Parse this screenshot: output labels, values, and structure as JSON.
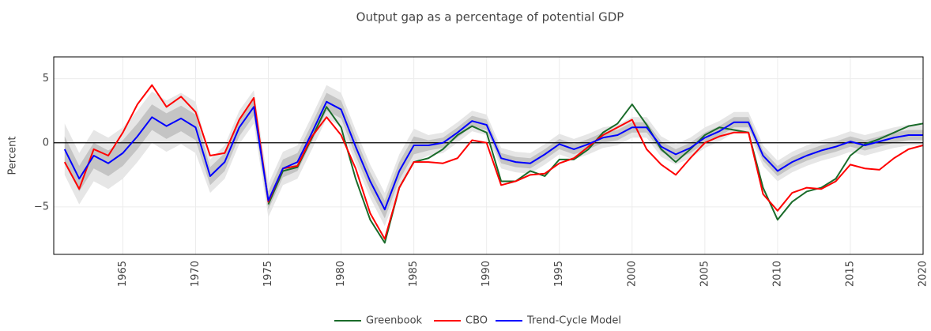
{
  "chart_data": {
    "type": "line",
    "title": "Output gap as a percentage of potential GDP",
    "y_label": "Percent",
    "x": [
      1961,
      1962,
      1963,
      1964,
      1965,
      1966,
      1967,
      1968,
      1969,
      1970,
      1971,
      1972,
      1973,
      1974,
      1975,
      1976,
      1977,
      1978,
      1979,
      1980,
      1981,
      1982,
      1983,
      1984,
      1985,
      1986,
      1987,
      1988,
      1989,
      1990,
      1991,
      1992,
      1993,
      1994,
      1995,
      1996,
      1997,
      1998,
      1999,
      2000,
      2001,
      2002,
      2003,
      2004,
      2005,
      2006,
      2007,
      2008,
      2009,
      2010,
      2011,
      2012,
      2013,
      2014,
      2015,
      2016,
      2017,
      2018,
      2019,
      2020
    ],
    "series": [
      {
        "name": "Greenbook",
        "color": "#1a6b2a",
        "values": [
          null,
          null,
          null,
          null,
          null,
          null,
          null,
          null,
          null,
          null,
          null,
          null,
          null,
          null,
          -4.8,
          -2.2,
          -1.9,
          0.4,
          2.8,
          1.2,
          -2.8,
          -6.0,
          -7.8,
          -3.5,
          -1.5,
          -1.2,
          -0.5,
          0.6,
          1.3,
          0.8,
          -3.0,
          -3.0,
          -2.2,
          -2.6,
          -1.3,
          -1.3,
          -0.5,
          0.8,
          1.5,
          3.0,
          1.4,
          -0.5,
          -1.5,
          -0.5,
          0.6,
          1.2,
          1.0,
          0.8,
          -3.5,
          -6.0,
          -4.6,
          -3.8,
          -3.5,
          -2.8,
          -1.0,
          -0.1,
          0.3,
          0.8,
          1.3,
          1.5
        ]
      },
      {
        "name": "CBO",
        "color": "#ff0000",
        "values": [
          -1.5,
          -3.6,
          -0.5,
          -1.0,
          0.8,
          3.0,
          4.5,
          2.8,
          3.6,
          2.4,
          -1.0,
          -0.8,
          1.8,
          3.5,
          -4.6,
          -2.0,
          -1.8,
          0.5,
          2.0,
          0.6,
          -2.0,
          -5.5,
          -7.5,
          -3.5,
          -1.5,
          -1.5,
          -1.6,
          -1.2,
          0.2,
          0.0,
          -3.3,
          -3.0,
          -2.5,
          -2.4,
          -1.6,
          -1.2,
          -0.3,
          0.6,
          1.2,
          1.8,
          -0.5,
          -1.7,
          -2.5,
          -1.2,
          0.0,
          0.5,
          0.8,
          0.8,
          -4.0,
          -5.3,
          -3.9,
          -3.5,
          -3.6,
          -3.0,
          -1.7,
          -2.0,
          -2.1,
          -1.2,
          -0.5,
          -0.2
        ]
      },
      {
        "name": "Trend-Cycle Model",
        "color": "#0000ff",
        "values": [
          -0.5,
          -2.8,
          -1.0,
          -1.6,
          -0.8,
          0.5,
          2.0,
          1.3,
          1.9,
          1.2,
          -2.6,
          -1.5,
          1.2,
          2.8,
          -4.5,
          -2.0,
          -1.5,
          0.8,
          3.2,
          2.6,
          -0.3,
          -3.0,
          -5.2,
          -2.2,
          -0.2,
          -0.2,
          0.0,
          0.8,
          1.7,
          1.4,
          -1.2,
          -1.5,
          -1.6,
          -0.9,
          -0.1,
          -0.5,
          -0.1,
          0.4,
          0.6,
          1.2,
          1.2,
          -0.3,
          -0.9,
          -0.4,
          0.4,
          0.9,
          1.6,
          1.6,
          -1.0,
          -2.2,
          -1.5,
          -1.0,
          -0.6,
          -0.3,
          0.1,
          -0.2,
          0.1,
          0.4,
          0.6,
          0.6
        ]
      }
    ],
    "bands": [
      {
        "color": "#e6e6e6",
        "upper": [
          1.5,
          -0.8,
          1.0,
          0.4,
          1.2,
          2.5,
          4.0,
          3.3,
          3.9,
          3.2,
          -1.3,
          -0.2,
          2.5,
          4.1,
          -3.2,
          -0.7,
          -0.2,
          2.1,
          4.5,
          3.9,
          1.0,
          -1.7,
          -3.9,
          -0.9,
          1.1,
          0.6,
          0.8,
          1.6,
          2.5,
          2.2,
          -0.4,
          -0.7,
          -0.8,
          -0.1,
          0.7,
          0.3,
          0.7,
          1.2,
          1.4,
          2.0,
          2.0,
          0.5,
          -0.1,
          0.4,
          1.2,
          1.7,
          2.4,
          2.4,
          -0.2,
          -1.4,
          -0.7,
          -0.2,
          0.2,
          0.5,
          0.9,
          0.6,
          0.9,
          1.2,
          1.4,
          1.4
        ],
        "lower": [
          -2.5,
          -4.8,
          -3.0,
          -3.6,
          -2.8,
          -1.5,
          0.0,
          -0.7,
          -0.1,
          -0.8,
          -3.9,
          -2.8,
          -0.1,
          1.5,
          -5.8,
          -3.3,
          -2.8,
          -0.5,
          1.9,
          1.3,
          -1.6,
          -4.3,
          -6.5,
          -3.5,
          -1.5,
          -1.0,
          -0.8,
          0.0,
          0.9,
          0.6,
          -2.0,
          -2.3,
          -2.4,
          -1.7,
          -0.9,
          -1.3,
          -0.9,
          -0.4,
          -0.2,
          0.4,
          0.4,
          -1.1,
          -1.7,
          -1.2,
          -0.4,
          0.1,
          0.8,
          0.8,
          -1.8,
          -3.0,
          -2.3,
          -1.8,
          -1.4,
          -1.1,
          -0.7,
          -1.0,
          -0.7,
          -0.4,
          -0.2,
          -0.2
        ]
      },
      {
        "color": "#c4c4c4",
        "upper": [
          0.5,
          -1.8,
          0.0,
          -0.6,
          0.2,
          1.5,
          3.0,
          2.3,
          2.9,
          2.2,
          -1.9,
          -0.8,
          1.9,
          3.5,
          -3.8,
          -1.3,
          -0.8,
          1.5,
          3.9,
          3.3,
          0.4,
          -2.3,
          -4.5,
          -1.5,
          0.5,
          0.2,
          0.4,
          1.2,
          2.1,
          1.8,
          -0.8,
          -1.1,
          -1.2,
          -0.5,
          0.3,
          -0.1,
          0.3,
          0.8,
          1.0,
          1.6,
          1.6,
          0.1,
          -0.5,
          0.0,
          0.8,
          1.3,
          2.0,
          2.0,
          -0.6,
          -1.8,
          -1.1,
          -0.6,
          -0.2,
          0.1,
          0.5,
          0.2,
          0.5,
          0.8,
          1.0,
          1.0
        ],
        "lower": [
          -1.5,
          -3.8,
          -2.0,
          -2.6,
          -1.8,
          -0.5,
          1.0,
          0.3,
          0.9,
          0.2,
          -3.3,
          -2.2,
          0.5,
          2.1,
          -5.2,
          -2.7,
          -2.2,
          0.1,
          2.5,
          1.9,
          -1.0,
          -3.7,
          -5.9,
          -2.9,
          -0.9,
          -0.6,
          -0.4,
          0.4,
          1.3,
          1.0,
          -1.6,
          -1.9,
          -2.0,
          -1.3,
          -0.5,
          -0.9,
          -0.5,
          0.0,
          0.2,
          0.8,
          0.8,
          -0.7,
          -1.3,
          -0.8,
          0.0,
          0.5,
          1.2,
          1.2,
          -1.4,
          -2.6,
          -1.9,
          -1.4,
          -1.0,
          -0.7,
          -0.3,
          -0.6,
          -0.3,
          0.0,
          0.2,
          0.2
        ]
      }
    ],
    "xlim": [
      1960.25,
      2020
    ],
    "xticks": [
      1965,
      1970,
      1975,
      1980,
      1985,
      1990,
      1995,
      2000,
      2005,
      2010,
      2015,
      2020
    ],
    "ylim": [
      -8.7,
      6.7
    ],
    "yticks": [
      {
        "value": -5,
        "label": "−5"
      },
      0,
      5
    ],
    "grid": true,
    "legend": "bottom"
  }
}
